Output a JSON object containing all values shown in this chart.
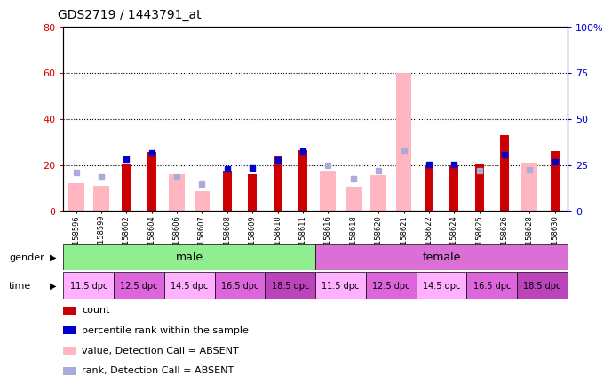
{
  "title": "GDS2719 / 1443791_at",
  "samples": [
    "GSM158596",
    "GSM158599",
    "GSM158602",
    "GSM158604",
    "GSM158606",
    "GSM158607",
    "GSM158608",
    "GSM158609",
    "GSM158610",
    "GSM158611",
    "GSM158616",
    "GSM158618",
    "GSM158620",
    "GSM158621",
    "GSM158622",
    "GSM158624",
    "GSM158625",
    "GSM158626",
    "GSM158628",
    "GSM158630"
  ],
  "count_values": [
    null,
    null,
    20.5,
    25.5,
    null,
    null,
    17.5,
    16.0,
    24.0,
    26.5,
    null,
    null,
    null,
    null,
    20.0,
    20.0,
    20.5,
    33.0,
    null,
    26.0
  ],
  "value_absent": [
    12.0,
    11.0,
    null,
    null,
    16.0,
    8.5,
    null,
    null,
    null,
    null,
    17.5,
    10.5,
    15.5,
    60.0,
    null,
    null,
    null,
    null,
    21.0,
    null
  ],
  "percentile_rank": [
    null,
    null,
    28.0,
    31.5,
    null,
    null,
    23.0,
    23.5,
    27.5,
    32.5,
    null,
    null,
    null,
    null,
    25.5,
    25.5,
    null,
    30.5,
    null,
    26.5
  ],
  "rank_absent": [
    21.0,
    18.5,
    null,
    null,
    18.5,
    14.5,
    null,
    null,
    null,
    null,
    25.0,
    17.5,
    22.0,
    33.0,
    null,
    null,
    22.0,
    null,
    22.5,
    null
  ],
  "count_color": "#CC0000",
  "value_absent_color": "#FFB6C1",
  "percentile_color": "#0000CC",
  "rank_absent_color": "#AAAADD",
  "ylim_left": [
    0,
    80
  ],
  "ylim_right": [
    0,
    100
  ],
  "yticks_left": [
    0,
    20,
    40,
    60,
    80
  ],
  "ytick_labels_left": [
    "0",
    "20",
    "40",
    "60",
    "80"
  ],
  "yticks_right": [
    0,
    25,
    50,
    75,
    100
  ],
  "ytick_labels_right": [
    "0",
    "25",
    "50",
    "75",
    "100%"
  ],
  "gender_male_color": "#90EE90",
  "gender_female_color": "#DA70D6",
  "time_colors": [
    "#FFB0FF",
    "#EE6EEE",
    "#FFB0FF",
    "#EE6EEE",
    "#BB44BB"
  ],
  "background_color": "#FFFFFF",
  "legend_items": [
    {
      "color": "#CC0000",
      "label": "count"
    },
    {
      "color": "#0000CC",
      "label": "percentile rank within the sample"
    },
    {
      "color": "#FFB6C1",
      "label": "value, Detection Call = ABSENT"
    },
    {
      "color": "#AAAADD",
      "label": "rank, Detection Call = ABSENT"
    }
  ]
}
